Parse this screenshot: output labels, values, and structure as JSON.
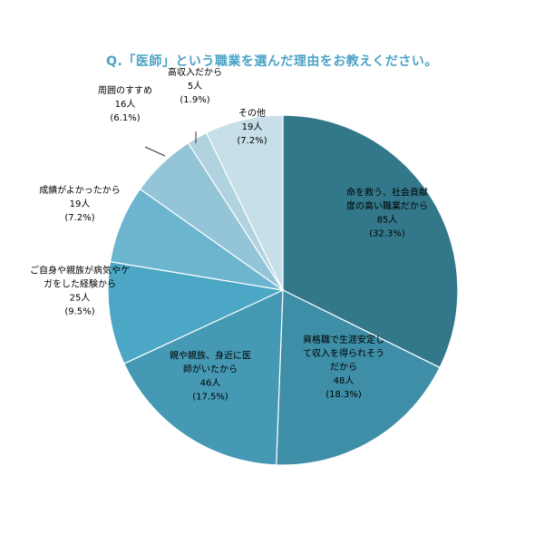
{
  "chart_data": {
    "type": "pie",
    "title": "Q.「医師」という職業を選んだ理由をお教えください。",
    "title_color": "#4ba3c7",
    "slices": [
      {
        "lines": [
          "命を救う、社会貢献",
          "度の高い職業だから"
        ],
        "count": "85人",
        "percent": "(32.3%)",
        "value": 32.3,
        "color": "#33788a"
      },
      {
        "lines": [
          "資格職で生涯安定し",
          "て収入を得られそう",
          "だから"
        ],
        "count": "48人",
        "percent": "(18.3%)",
        "value": 18.3,
        "color": "#3d8ea6"
      },
      {
        "lines": [
          "親や親族、身近に医",
          "師がいたから"
        ],
        "count": "46人",
        "percent": "(17.5%)",
        "value": 17.5,
        "color": "#4599b5"
      },
      {
        "lines": [
          "ご自身や親族が病気やケ",
          "ガをした経験から"
        ],
        "count": "25人",
        "percent": "(9.5%)",
        "value": 9.5,
        "color": "#4ba7c5"
      },
      {
        "lines": [
          "成績がよかったから"
        ],
        "count": "19人",
        "percent": "(7.2%)",
        "value": 7.2,
        "color": "#6bb5cf"
      },
      {
        "lines": [
          "周囲のすすめ"
        ],
        "count": "16人",
        "percent": "(6.1%)",
        "value": 6.1,
        "color": "#93c4d7"
      },
      {
        "lines": [
          "高収入だから"
        ],
        "count": "5人",
        "percent": "(1.9%)",
        "value": 1.9,
        "color": "#b1d3df"
      },
      {
        "lines": [
          "その他"
        ],
        "count": "19人",
        "percent": "(7.2%)",
        "value": 7.2,
        "color": "#c6dfe8"
      }
    ]
  }
}
